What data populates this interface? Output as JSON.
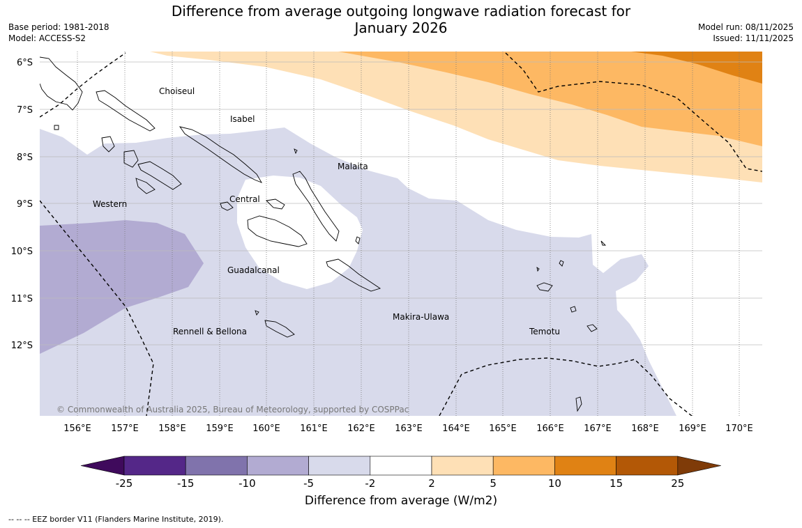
{
  "title": {
    "line1": "Difference from average outgoing longwave radiation forecast for",
    "line2": "January 2026"
  },
  "meta_left": {
    "base_period": "Base period: 1981-2018",
    "model": "Model: ACCESS-S2"
  },
  "meta_right": {
    "model_run": "Model run: 08/11/2025",
    "issued": "Issued: 11/11/2025"
  },
  "lat_labels": [
    "6°S",
    "7°S",
    "8°S",
    "9°S",
    "10°S",
    "11°S",
    "12°S"
  ],
  "lon_labels": [
    "156°E",
    "157°E",
    "158°E",
    "159°E",
    "160°E",
    "161°E",
    "162°E",
    "163°E",
    "164°E",
    "165°E",
    "166°E",
    "167°E",
    "168°E",
    "169°E",
    "170°E"
  ],
  "regions": {
    "choiseul": "Choiseul",
    "isabel": "Isabel",
    "malaita": "Malaita",
    "western": "Western",
    "central": "Central",
    "guadalcanal": "Guadalcanal",
    "rennell": "Rennell & Bellona",
    "makira": "Makira-Ulawa",
    "temotu": "Temotu"
  },
  "copyright": "© Commonwealth of Australia 2025, Bureau of Meteorology, supported by COSPPac",
  "colorbar": {
    "ticks": [
      "-25",
      "-15",
      "-10",
      "-5",
      "-2",
      "2",
      "5",
      "10",
      "15",
      "25"
    ],
    "colors": [
      "#3f0a5c",
      "#542788",
      "#8073ac",
      "#b2abd2",
      "#d8daeb",
      "#ffffff",
      "#fee0b6",
      "#fdb863",
      "#e08214",
      "#b35806",
      "#7f3b08"
    ],
    "title": "Difference from average (W/m2)"
  },
  "footnote": "--  --  -- EEZ border V11 (Flanders Marine Institute, 2019)."
}
